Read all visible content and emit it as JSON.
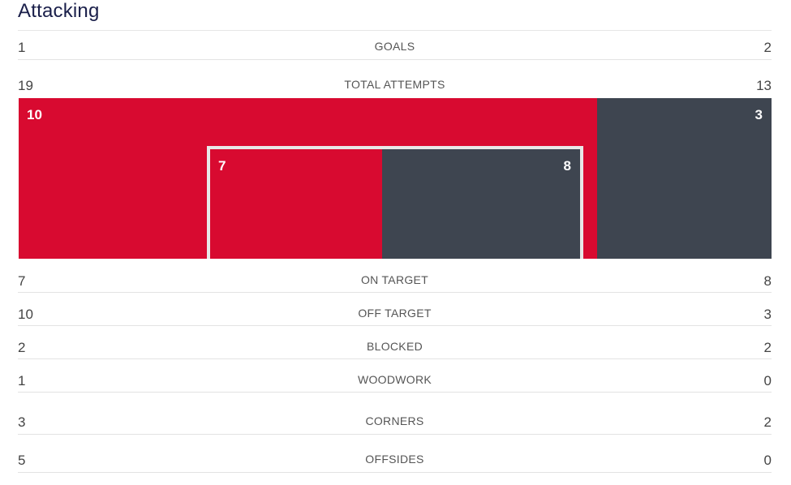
{
  "section_title": "Attacking",
  "stats": {
    "goals": {
      "home": "1",
      "label": "GOALS",
      "away": "2"
    },
    "total_attempts": {
      "home": "19",
      "label": "TOTAL ATTEMPTS",
      "away": "13"
    },
    "on_target": {
      "home": "7",
      "label": "ON TARGET",
      "away": "8"
    },
    "off_target": {
      "home": "10",
      "label": "OFF TARGET",
      "away": "3"
    },
    "blocked": {
      "home": "2",
      "label": "BLOCKED",
      "away": "2"
    },
    "woodwork": {
      "home": "1",
      "label": "WOODWORK",
      "away": "0"
    },
    "corners": {
      "home": "3",
      "label": "CORNERS",
      "away": "2"
    },
    "offsides": {
      "home": "5",
      "label": "OFFSIDES",
      "away": "0"
    }
  },
  "attempts_graphic": {
    "off_target_home": "10",
    "off_target_away": "3",
    "on_target_home": "7",
    "on_target_away": "8"
  },
  "colors": {
    "home": "#d80a30",
    "away": "#3e4550",
    "goal_frame": "#e8e8e8",
    "title": "#1a1f4a"
  }
}
